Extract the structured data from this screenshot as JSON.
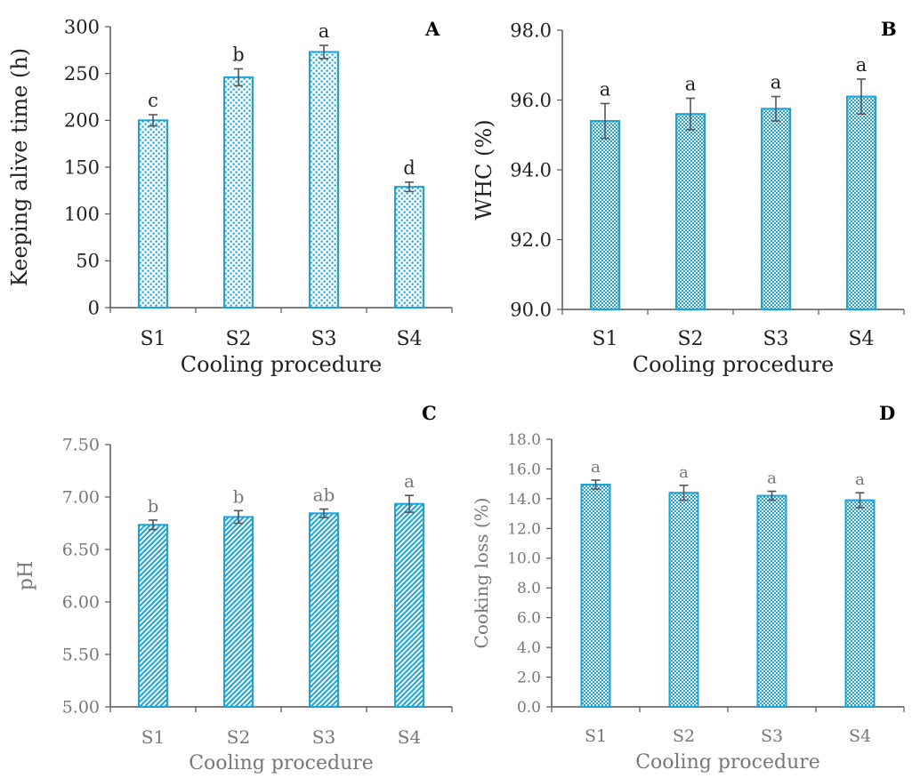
{
  "colors": {
    "bar_stroke": "#1aa3dd",
    "bar_fill_pattern": "#1aa3dd",
    "axis": "#555555",
    "error_bar": "#555555",
    "text_dark": "#222222",
    "text_gray": "#777777"
  },
  "chart_data": [
    {
      "panel": "A",
      "type": "bar",
      "categories": [
        "S1",
        "S2",
        "S3",
        "S4"
      ],
      "values": [
        200,
        246,
        273,
        129
      ],
      "errors": [
        6,
        9,
        7,
        5
      ],
      "significance": [
        "c",
        "b",
        "a",
        "d"
      ],
      "xlabel": "Cooling procedure",
      "ylabel": "Keeping alive time (h)",
      "ylim": [
        0,
        300
      ],
      "yticks": [
        "0",
        "50",
        "100",
        "150",
        "200",
        "250",
        "300"
      ],
      "grid": false,
      "pattern": "dots"
    },
    {
      "panel": "B",
      "type": "bar",
      "categories": [
        "S1",
        "S2",
        "S3",
        "S4"
      ],
      "values": [
        95.4,
        95.6,
        95.75,
        96.1
      ],
      "errors": [
        0.5,
        0.45,
        0.35,
        0.5
      ],
      "significance": [
        "a",
        "a",
        "a",
        "a"
      ],
      "xlabel": "Cooling procedure",
      "ylabel": "WHC (%)",
      "ylim": [
        90,
        98
      ],
      "yticks": [
        "90.0",
        "92.0",
        "94.0",
        "96.0",
        "98.0"
      ],
      "grid": false,
      "pattern": "checker"
    },
    {
      "panel": "C",
      "type": "bar",
      "categories": [
        "S1",
        "S2",
        "S3",
        "S4"
      ],
      "values": [
        6.735,
        6.81,
        6.845,
        6.935
      ],
      "errors": [
        0.045,
        0.06,
        0.04,
        0.08
      ],
      "significance": [
        "b",
        "b",
        "ab",
        "a"
      ],
      "xlabel": "Cooling procedure",
      "ylabel": "pH",
      "ylim": [
        5.0,
        7.5
      ],
      "yticks": [
        "5.00",
        "5.50",
        "6.00",
        "6.50",
        "7.00",
        "7.50"
      ],
      "grid": false,
      "pattern": "diagonal"
    },
    {
      "panel": "D",
      "type": "bar",
      "categories": [
        "S1",
        "S2",
        "S3",
        "S4"
      ],
      "values": [
        14.95,
        14.4,
        14.2,
        13.9
      ],
      "errors": [
        0.3,
        0.5,
        0.3,
        0.5
      ],
      "significance": [
        "a",
        "a",
        "a",
        "a"
      ],
      "xlabel": "Cooling procedure",
      "ylabel": "Cooking loss (%)",
      "ylim": [
        0,
        18
      ],
      "yticks": [
        "0.0",
        "2.0",
        "4.0",
        "6.0",
        "8.0",
        "10.0",
        "12.0",
        "14.0",
        "16.0",
        "18.0"
      ],
      "grid": false,
      "pattern": "checker"
    }
  ]
}
